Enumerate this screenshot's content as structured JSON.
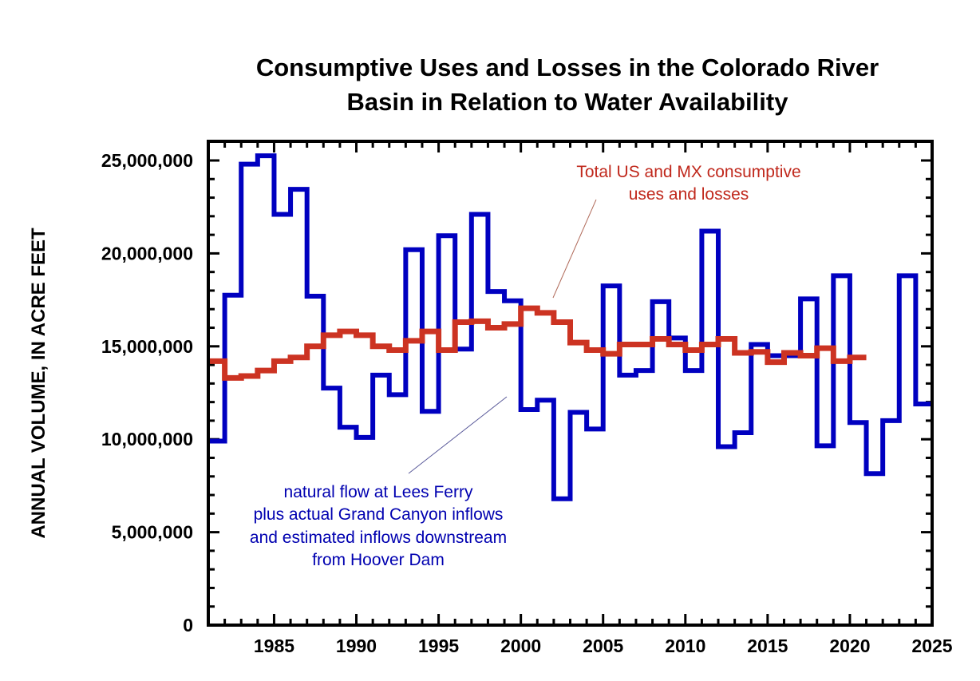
{
  "chart_data": {
    "type": "line",
    "step": true,
    "title": [
      "Consumptive Uses and Losses in the Colorado River",
      "Basin in Relation to Water Availability"
    ],
    "xlabel": "",
    "ylabel": "ANNUAL VOLUME, IN ACRE FEET",
    "xlim": [
      1981,
      2025
    ],
    "ylim": [
      0,
      25500000
    ],
    "x_ticks": [
      1985,
      1990,
      1995,
      2000,
      2005,
      2010,
      2015,
      2020,
      2025
    ],
    "x_tick_labels": [
      "1985",
      "1990",
      "1995",
      "2000",
      "2005",
      "2010",
      "2015",
      "2020",
      "2025"
    ],
    "y_ticks": [
      0,
      5000000,
      10000000,
      15000000,
      20000000,
      25000000
    ],
    "y_tick_labels": [
      "0",
      "5,000,000",
      "10,000,000",
      "15,000,000",
      "20,000,000",
      "25,000,000"
    ],
    "grid": false,
    "series": [
      {
        "name": "natural flow at Lees Ferry plus actual Grand Canyon inflows and estimated inflows downstream from Hoover Dam",
        "color": "#0000c0",
        "x": [
          1981,
          1982,
          1983,
          1984,
          1985,
          1986,
          1987,
          1988,
          1989,
          1990,
          1991,
          1992,
          1993,
          1994,
          1995,
          1996,
          1997,
          1998,
          1999,
          2000,
          2001,
          2002,
          2003,
          2004,
          2005,
          2006,
          2007,
          2008,
          2009,
          2010,
          2011,
          2012,
          2013,
          2014,
          2015,
          2016,
          2017,
          2018,
          2019,
          2020,
          2021,
          2022,
          2023,
          2024
        ],
        "values": [
          9900000,
          17750000,
          24800000,
          25250000,
          22100000,
          23450000,
          17700000,
          12750000,
          10650000,
          10100000,
          13450000,
          12400000,
          20200000,
          11500000,
          20950000,
          14850000,
          22100000,
          17950000,
          17450000,
          11600000,
          12100000,
          6800000,
          11450000,
          10550000,
          18250000,
          13450000,
          13700000,
          17400000,
          15450000,
          13700000,
          21200000,
          9600000,
          10350000,
          15100000,
          14500000,
          14500000,
          17550000,
          9650000,
          18800000,
          10900000,
          8150000,
          11000000,
          18800000,
          11900000
        ]
      },
      {
        "name": "Total US and MX consumptive uses and losses",
        "color": "#cc3322",
        "x": [
          1981,
          1982,
          1983,
          1984,
          1985,
          1986,
          1987,
          1988,
          1989,
          1990,
          1991,
          1992,
          1993,
          1994,
          1995,
          1996,
          1997,
          1998,
          1999,
          2000,
          2001,
          2002,
          2003,
          2004,
          2005,
          2006,
          2007,
          2008,
          2009,
          2010,
          2011,
          2012,
          2013,
          2014,
          2015,
          2016,
          2017,
          2018,
          2019,
          2020
        ],
        "values": [
          14200000,
          13300000,
          13400000,
          13700000,
          14200000,
          14400000,
          15000000,
          15600000,
          15800000,
          15600000,
          15000000,
          14800000,
          15300000,
          15800000,
          14800000,
          16300000,
          16350000,
          16000000,
          16200000,
          17050000,
          16800000,
          16300000,
          15200000,
          14800000,
          14600000,
          15100000,
          15100000,
          15400000,
          15100000,
          14800000,
          15100000,
          15400000,
          14650000,
          14700000,
          14150000,
          14650000,
          14500000,
          14900000,
          14200000,
          14400000
        ]
      }
    ],
    "annotations": [
      {
        "series": 1,
        "lines": [
          "Total US and MX consumptive",
          "uses and losses"
        ]
      },
      {
        "series": 0,
        "lines": [
          "natural flow at Lees Ferry",
          "plus actual Grand Canyon inflows",
          "and estimated inflows downstream",
          "from Hoover Dam"
        ]
      }
    ]
  }
}
